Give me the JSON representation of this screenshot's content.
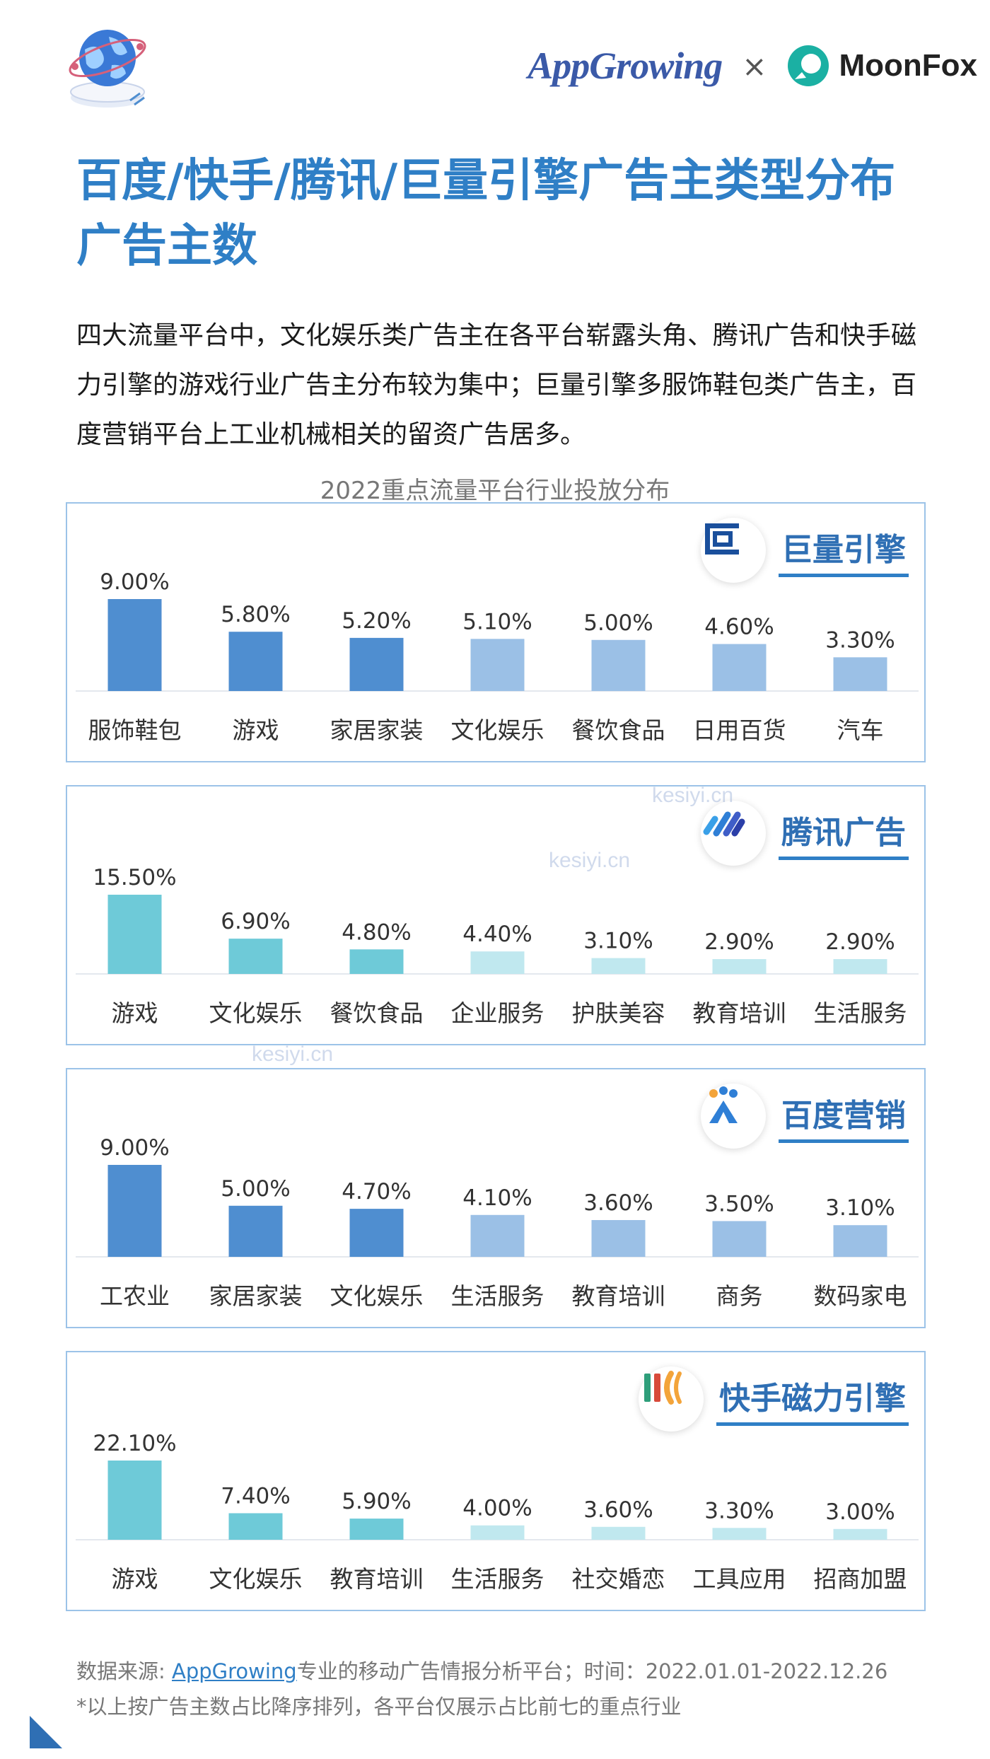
{
  "header": {
    "brand_app": "AppGrowing",
    "brand_sep": "×",
    "brand_moon": "MoonFox"
  },
  "page": {
    "title": "百度/快手/腾讯/巨量引擎广告主类型分布广告主数",
    "intro": "四大流量平台中，文化娱乐类广告主在各平台崭露头角、腾讯广告和快手磁力引擎的游戏行业广告主分布较为集中；巨量引擎多服饰鞋包类广告主，百度营销平台上工业机械相关的留资广告居多。",
    "chart_caption": "2022重点流量平台行业投放分布"
  },
  "panels": [
    {
      "name": "巨量引擎",
      "icon": "juliang-icon"
    },
    {
      "name": "腾讯广告",
      "icon": "tencent-ads-icon"
    },
    {
      "name": "百度营销",
      "icon": "baidu-marketing-icon"
    },
    {
      "name": "快手磁力引擎",
      "icon": "kuaishou-icon"
    }
  ],
  "watermark": "kesiyi.cn",
  "footer": {
    "source_prefix": "数据来源: ",
    "source_link": "AppGrowing",
    "source_suffix": "专业的移动广告情报分析平台；时间：2022.01.01-2022.12.26",
    "note": "*以上按广告主数占比降序排列，各平台仅展示占比前七的重点行业"
  },
  "chart_data": [
    {
      "type": "bar",
      "title": "巨量引擎",
      "categories": [
        "服饰鞋包",
        "游戏",
        "家居家装",
        "文化娱乐",
        "餐饮食品",
        "日用百货",
        "汽车"
      ],
      "values": [
        9.0,
        5.8,
        5.2,
        5.1,
        5.0,
        4.6,
        3.3
      ],
      "labels": [
        "9.00%",
        "5.80%",
        "5.20%",
        "5.10%",
        "5.00%",
        "4.60%",
        "3.30%"
      ],
      "unit": "%",
      "highlight_count": 3,
      "colors": {
        "dark": "#4f8ed0",
        "light": "#9bc0e6"
      },
      "grid": false
    },
    {
      "type": "bar",
      "title": "腾讯广告",
      "categories": [
        "游戏",
        "文化娱乐",
        "餐饮食品",
        "企业服务",
        "护肤美容",
        "教育培训",
        "生活服务"
      ],
      "values": [
        15.5,
        6.9,
        4.8,
        4.4,
        3.1,
        2.9,
        2.9
      ],
      "labels": [
        "15.50%",
        "6.90%",
        "4.80%",
        "4.40%",
        "3.10%",
        "2.90%",
        "2.90%"
      ],
      "unit": "%",
      "highlight_count": 3,
      "colors": {
        "dark": "#6ecad8",
        "light": "#c0e8ef"
      },
      "grid": false
    },
    {
      "type": "bar",
      "title": "百度营销",
      "categories": [
        "工农业",
        "家居家装",
        "文化娱乐",
        "生活服务",
        "教育培训",
        "商务",
        "数码家电"
      ],
      "values": [
        9.0,
        5.0,
        4.7,
        4.1,
        3.6,
        3.5,
        3.1
      ],
      "labels": [
        "9.00%",
        "5.00%",
        "4.70%",
        "4.10%",
        "3.60%",
        "3.50%",
        "3.10%"
      ],
      "unit": "%",
      "highlight_count": 3,
      "colors": {
        "dark": "#4f8ed0",
        "light": "#9bc0e6"
      },
      "grid": false
    },
    {
      "type": "bar",
      "title": "快手磁力引擎",
      "categories": [
        "游戏",
        "文化娱乐",
        "教育培训",
        "生活服务",
        "社交婚恋",
        "工具应用",
        "招商加盟"
      ],
      "values": [
        22.1,
        7.4,
        5.9,
        4.0,
        3.6,
        3.3,
        3.0
      ],
      "labels": [
        "22.10%",
        "7.40%",
        "5.90%",
        "4.00%",
        "3.60%",
        "3.30%",
        "3.00%"
      ],
      "unit": "%",
      "highlight_count": 3,
      "colors": {
        "dark": "#6ecad8",
        "light": "#c0e8ef"
      },
      "grid": false
    }
  ]
}
